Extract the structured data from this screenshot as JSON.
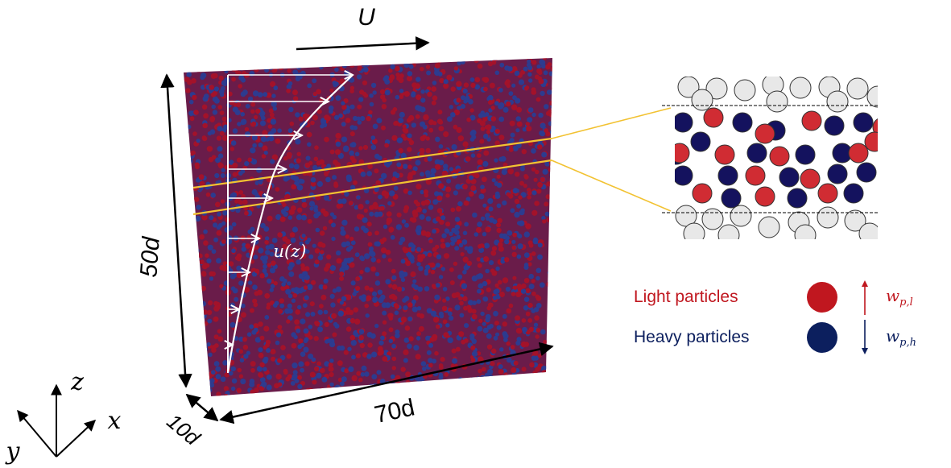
{
  "labels": {
    "velocity": "U",
    "profile": "u(z)",
    "height": "50d",
    "length": "70d",
    "depth": "10d"
  },
  "axes": {
    "z": "z",
    "x": "x",
    "y": "y"
  },
  "legend": [
    {
      "label": "Light particles",
      "color": "#c0171f",
      "symbol": "w",
      "sub": "p,l",
      "arrow": "up"
    },
    {
      "label": "Heavy particles",
      "color": "#0c1f5e",
      "symbol": "w",
      "sub": "p,h",
      "arrow": "down"
    }
  ],
  "colors": {
    "light": "#a3122a",
    "heavy": "#2d3b8f",
    "inset_light": "#d02c33",
    "inset_heavy": "#14125e",
    "highlight": "#f2c232",
    "wall": "#e8e8e8"
  }
}
